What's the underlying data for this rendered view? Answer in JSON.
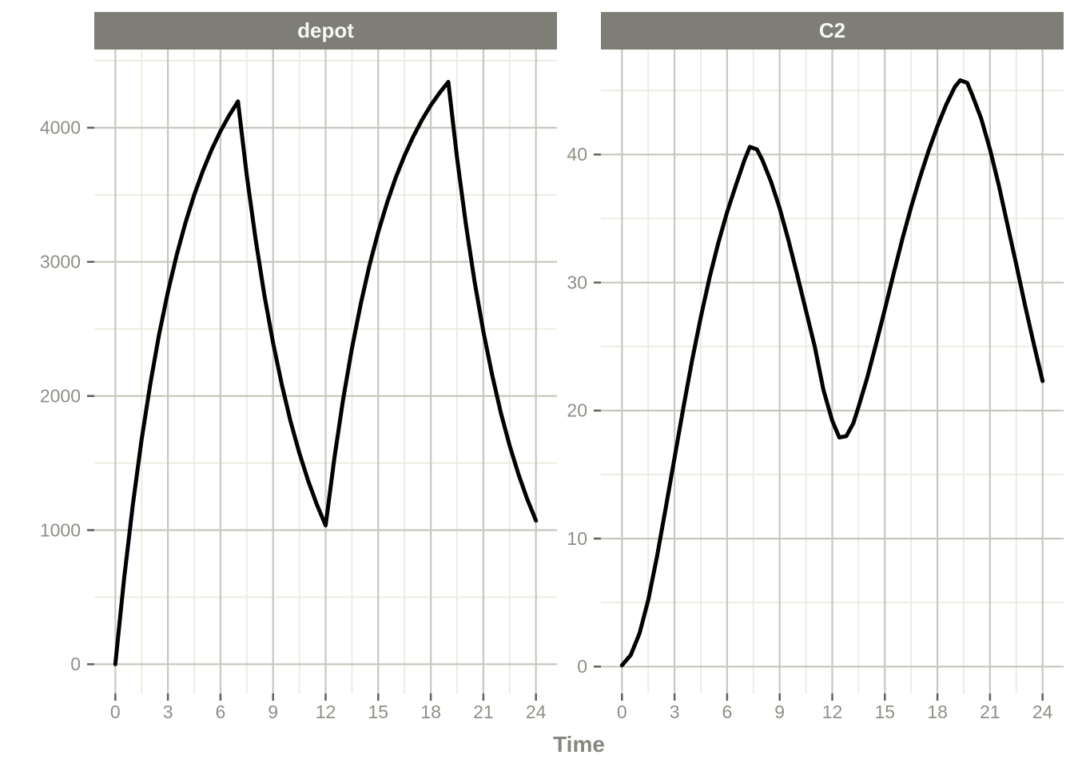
{
  "figure": {
    "xlabel": "Time",
    "facets": [
      "depot",
      "C2"
    ],
    "colors": {
      "background": "#ffffff",
      "strip_bg": "#7e7e76",
      "strip_text": "#f8f8f3",
      "axis_text": "#8f8f87",
      "title_text": "#87877f",
      "grid_major": "#c8c8bf",
      "grid_minor": "#ecece2",
      "tick": "#60605a",
      "line": "#000000"
    }
  },
  "chart_data": [
    {
      "type": "line",
      "title": "depot",
      "xlabel": "Time",
      "ylabel": "",
      "legend": "none",
      "grid": "major+minor",
      "xlim": [
        -1.2,
        25.2
      ],
      "ylim": [
        -218,
        4583
      ],
      "x_ticks": [
        0,
        3,
        6,
        9,
        12,
        15,
        18,
        21,
        24
      ],
      "x_minor": [
        1.5,
        4.5,
        7.5,
        10.5,
        13.5,
        16.5,
        19.5,
        22.5
      ],
      "y_ticks": [
        0,
        1000,
        2000,
        3000,
        4000
      ],
      "y_minor": [
        500,
        1500,
        2500,
        3500,
        4500
      ],
      "series": [
        {
          "name": "depot",
          "points": [
            [
              0,
              0
            ],
            [
              0.5,
              639
            ],
            [
              1,
              1193
            ],
            [
              1.5,
              1675
            ],
            [
              2,
              2094
            ],
            [
              2.5,
              2459
            ],
            [
              3,
              2776
            ],
            [
              3.5,
              3051
            ],
            [
              4,
              3290
            ],
            [
              4.5,
              3499
            ],
            [
              5,
              3680
            ],
            [
              5.5,
              3837
            ],
            [
              6,
              3974
            ],
            [
              6.5,
              4093
            ],
            [
              7,
              4196
            ],
            [
              7.5,
              3646
            ],
            [
              8,
              3171
            ],
            [
              8.5,
              2757
            ],
            [
              9,
              2397
            ],
            [
              9.5,
              2084
            ],
            [
              10,
              1811
            ],
            [
              10.5,
              1575
            ],
            [
              11,
              1369
            ],
            [
              11.5,
              1191
            ],
            [
              12,
              1035
            ],
            [
              12.5,
              1539
            ],
            [
              13,
              1975
            ],
            [
              13.5,
              2355
            ],
            [
              14,
              2685
            ],
            [
              14.5,
              2973
            ],
            [
              15,
              3222
            ],
            [
              15.5,
              3439
            ],
            [
              16,
              3628
            ],
            [
              16.5,
              3792
            ],
            [
              17,
              3935
            ],
            [
              17.5,
              4059
            ],
            [
              18,
              4167
            ],
            [
              18.5,
              4260
            ],
            [
              19,
              4342
            ],
            [
              19.5,
              3773
            ],
            [
              20,
              3281
            ],
            [
              20.5,
              2852
            ],
            [
              21,
              2480
            ],
            [
              21.5,
              2156
            ],
            [
              22,
              1874
            ],
            [
              22.5,
              1630
            ],
            [
              23,
              1417
            ],
            [
              23.5,
              1232
            ],
            [
              24,
              1071
            ]
          ]
        }
      ]
    },
    {
      "type": "line",
      "title": "C2",
      "xlabel": "Time",
      "ylabel": "",
      "legend": "none",
      "grid": "major+minor",
      "xlim": [
        -1.2,
        25.2
      ],
      "ylim": [
        -2.1,
        48.2
      ],
      "x_ticks": [
        0,
        3,
        6,
        9,
        12,
        15,
        18,
        21,
        24
      ],
      "x_minor": [
        1.5,
        4.5,
        7.5,
        10.5,
        13.5,
        16.5,
        19.5,
        22.5
      ],
      "y_ticks": [
        0,
        10,
        20,
        30,
        40
      ],
      "y_minor": [
        5,
        15,
        25,
        35,
        45
      ],
      "series": [
        {
          "name": "C2",
          "points": [
            [
              0,
              0.1
            ],
            [
              0.5,
              0.9
            ],
            [
              1,
              2.6
            ],
            [
              1.5,
              5.2
            ],
            [
              2,
              8.6
            ],
            [
              2.5,
              12.4
            ],
            [
              3,
              16.3
            ],
            [
              3.5,
              20.2
            ],
            [
              4,
              23.9
            ],
            [
              4.5,
              27.3
            ],
            [
              5,
              30.4
            ],
            [
              5.5,
              33.1
            ],
            [
              6,
              35.5
            ],
            [
              6.5,
              37.6
            ],
            [
              7,
              39.6
            ],
            [
              7.3,
              40.6
            ],
            [
              7.7,
              40.4
            ],
            [
              8,
              39.6
            ],
            [
              8.5,
              37.9
            ],
            [
              9,
              35.8
            ],
            [
              9.5,
              33.3
            ],
            [
              10,
              30.6
            ],
            [
              10.5,
              27.8
            ],
            [
              11,
              25
            ],
            [
              11.5,
              21.6
            ],
            [
              12,
              19.2
            ],
            [
              12.4,
              17.9
            ],
            [
              12.8,
              18
            ],
            [
              13.2,
              19
            ],
            [
              13.5,
              20.3
            ],
            [
              14,
              22.6
            ],
            [
              14.5,
              25.2
            ],
            [
              15,
              27.9
            ],
            [
              15.5,
              30.7
            ],
            [
              16,
              33.4
            ],
            [
              16.5,
              35.9
            ],
            [
              17,
              38.2
            ],
            [
              17.5,
              40.3
            ],
            [
              18,
              42.2
            ],
            [
              18.5,
              43.9
            ],
            [
              19,
              45.3
            ],
            [
              19.3,
              45.8
            ],
            [
              19.7,
              45.6
            ],
            [
              20,
              44.6
            ],
            [
              20.5,
              42.8
            ],
            [
              21,
              40.4
            ],
            [
              21.5,
              37.6
            ],
            [
              22,
              34.5
            ],
            [
              22.5,
              31.4
            ],
            [
              23,
              28.2
            ],
            [
              23.5,
              25.2
            ],
            [
              24,
              22.3
            ]
          ]
        }
      ]
    }
  ]
}
